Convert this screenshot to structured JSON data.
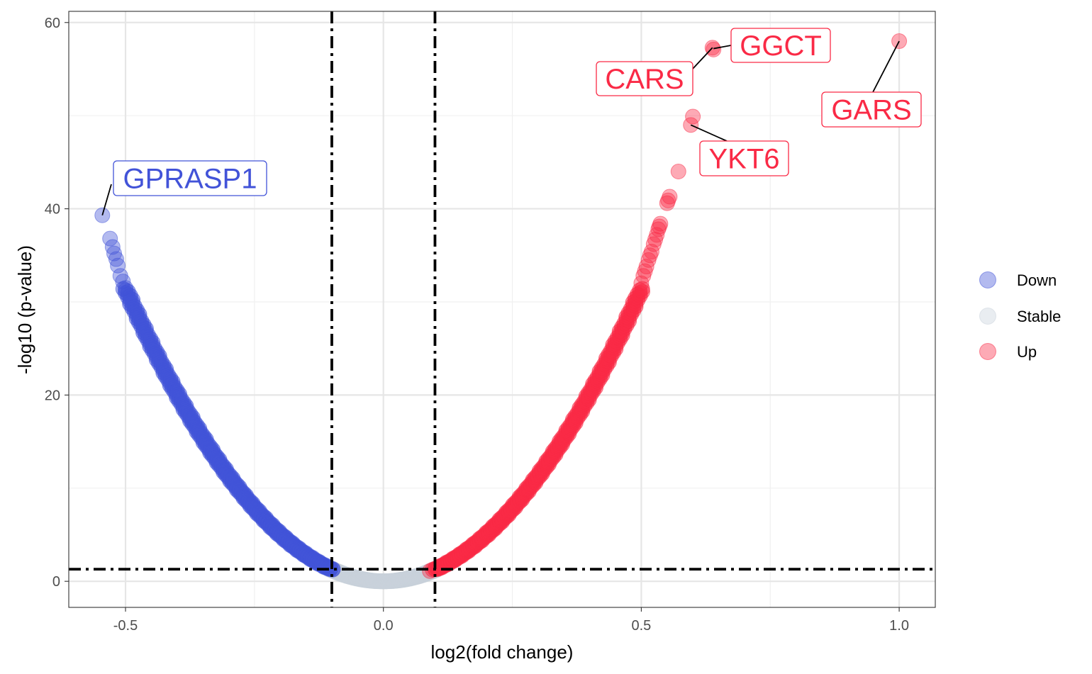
{
  "chart_data": {
    "type": "scatter",
    "title": "",
    "xlabel": "log2(fold change)",
    "ylabel": "-log10 (p-value)",
    "xlim": [
      -0.61,
      1.07
    ],
    "ylim": [
      -2.8,
      61.2
    ],
    "x_ticks": [
      -0.5,
      0.0,
      0.5,
      1.0
    ],
    "x_tick_labels": [
      "-0.5",
      "0.0",
      "0.5",
      "1.0"
    ],
    "y_ticks": [
      0,
      20,
      40,
      60
    ],
    "y_tick_labels": [
      "0",
      "20",
      "40",
      "60"
    ],
    "x_minor_gridlines": [
      -0.25,
      0.25,
      0.75
    ],
    "y_minor_gridlines": [
      10,
      30,
      50
    ],
    "grid": true,
    "legend_position": "right",
    "thresholds": {
      "fold_change": [
        -0.1,
        0.1
      ],
      "neg_log10_p": 1.3
    },
    "threshold_line_style": "dot-dash",
    "categories": [
      {
        "name": "Down",
        "color": "#4253D8"
      },
      {
        "name": "Stable",
        "color": "#C9D1DB"
      },
      {
        "name": "Up",
        "color": "#FA2A46"
      }
    ],
    "series": [
      {
        "name": "Down",
        "color": "#4253D8",
        "curve": {
          "x_from": -0.5,
          "x_to": -0.1,
          "fit": "y = 125.6 * x^2"
        },
        "points": [
          {
            "x": -0.545,
            "y": 39.3
          },
          {
            "x": -0.53,
            "y": 36.8
          },
          {
            "x": -0.525,
            "y": 35.9
          },
          {
            "x": -0.522,
            "y": 35.2
          },
          {
            "x": -0.518,
            "y": 34.6
          },
          {
            "x": -0.515,
            "y": 33.9
          },
          {
            "x": -0.51,
            "y": 32.8
          },
          {
            "x": -0.505,
            "y": 32.2
          },
          {
            "x": -0.5,
            "y": 31.5
          }
        ]
      },
      {
        "name": "Stable",
        "color": "#C9D1DB",
        "curve": {
          "x_from": -0.1,
          "x_to": 0.1,
          "fit": "y = 125.6 * x^2"
        },
        "points": []
      },
      {
        "name": "Up",
        "color": "#FA2A46",
        "curve": {
          "x_from": 0.1,
          "x_to": 0.5,
          "fit": "y = 125.6 * x^2"
        },
        "points": [
          {
            "x": 0.09,
            "y": 1.1
          },
          {
            "x": 1.0,
            "y": 58.0
          },
          {
            "x": 0.638,
            "y": 57.3
          },
          {
            "x": 0.64,
            "y": 57.1
          },
          {
            "x": 0.6,
            "y": 49.9
          },
          {
            "x": 0.596,
            "y": 49.0
          },
          {
            "x": 0.572,
            "y": 44.0
          },
          {
            "x": 0.555,
            "y": 41.3
          },
          {
            "x": 0.552,
            "y": 40.9
          },
          {
            "x": 0.55,
            "y": 40.6
          },
          {
            "x": 0.537,
            "y": 38.4
          },
          {
            "x": 0.535,
            "y": 38.1
          },
          {
            "x": 0.533,
            "y": 37.8
          },
          {
            "x": 0.53,
            "y": 37.2
          },
          {
            "x": 0.527,
            "y": 36.7
          },
          {
            "x": 0.524,
            "y": 36.2
          },
          {
            "x": 0.52,
            "y": 35.4
          },
          {
            "x": 0.517,
            "y": 35.0
          },
          {
            "x": 0.514,
            "y": 34.5
          },
          {
            "x": 0.51,
            "y": 33.8
          },
          {
            "x": 0.507,
            "y": 33.3
          },
          {
            "x": 0.504,
            "y": 32.8
          },
          {
            "x": 0.5,
            "y": 32.0
          }
        ]
      }
    ],
    "labels": [
      {
        "text": "GPRASP1",
        "x": -0.545,
        "y": 39.3,
        "series": "Down"
      },
      {
        "text": "GGCT",
        "x": 0.64,
        "y": 57.2,
        "series": "Up"
      },
      {
        "text": "CARS",
        "x": 0.638,
        "y": 57.3,
        "series": "Up"
      },
      {
        "text": "GARS",
        "x": 1.0,
        "y": 58.0,
        "series": "Up"
      },
      {
        "text": "YKT6",
        "x": 0.596,
        "y": 49.0,
        "series": "Up"
      }
    ]
  }
}
